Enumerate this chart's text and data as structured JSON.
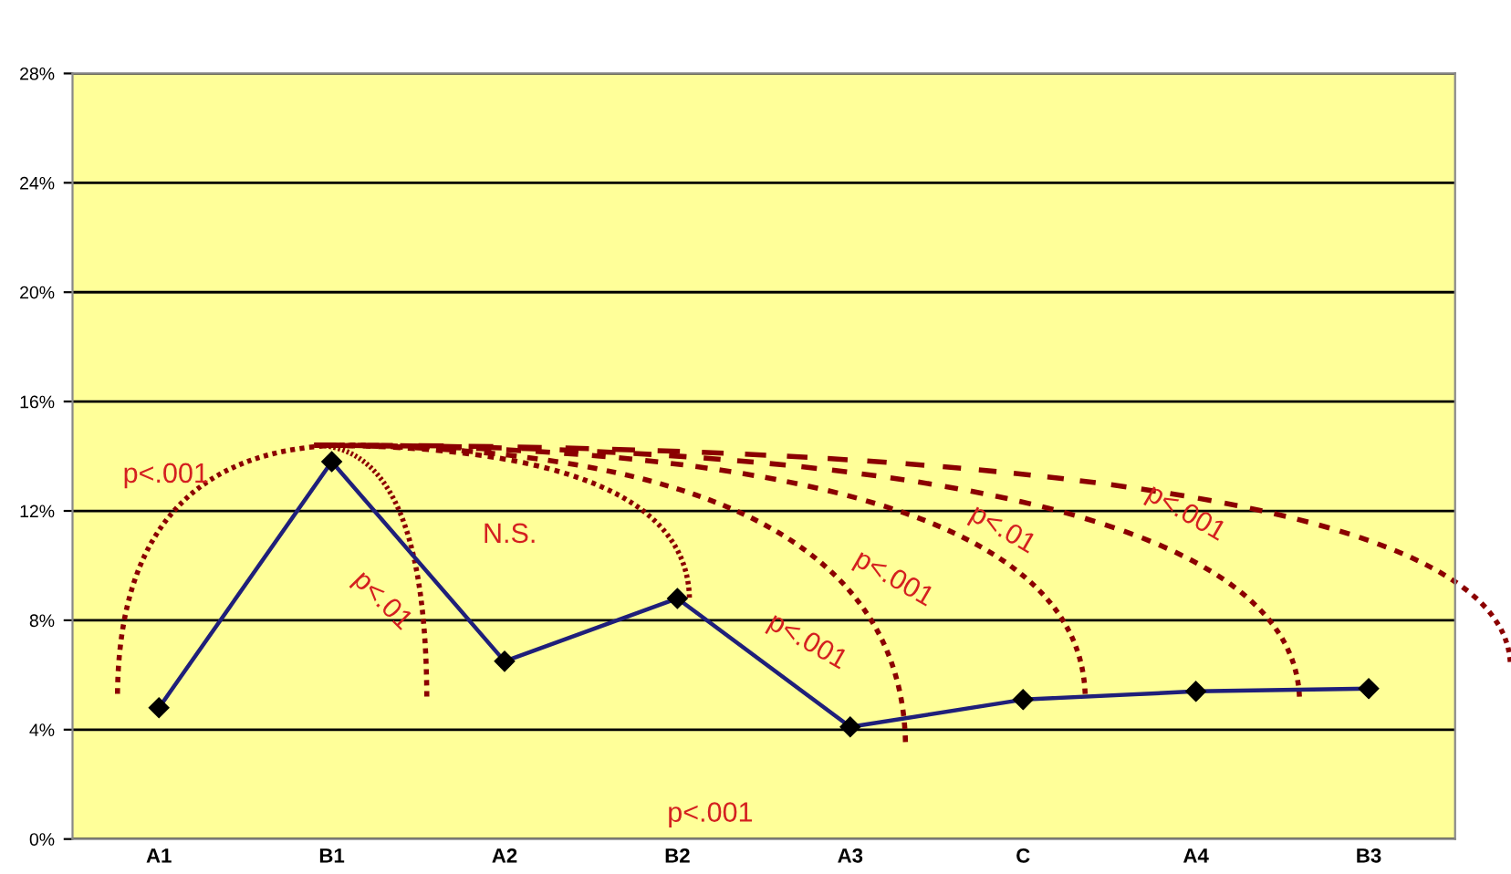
{
  "chart_data": {
    "type": "line",
    "categories": [
      "A1",
      "B1",
      "A2",
      "B2",
      "A3",
      "C",
      "A4",
      "B3"
    ],
    "series": [
      {
        "color": "#1f1f7a",
        "values": [
          4.8,
          13.8,
          6.5,
          8.8,
          4.1,
          5.1,
          5.4,
          5.5
        ]
      }
    ],
    "marker": "diamond",
    "ylim": [
      0,
      28
    ],
    "yticks": [
      {
        "value": 0,
        "label": "0%"
      },
      {
        "value": 4,
        "label": "4%"
      },
      {
        "value": 8,
        "label": "8%"
      },
      {
        "value": 12,
        "label": "12%"
      },
      {
        "value": 16,
        "label": "16%"
      },
      {
        "value": 20,
        "label": "20%"
      },
      {
        "value": 24,
        "label": "24%"
      },
      {
        "value": 28,
        "label": "28%"
      }
    ],
    "grid": "y",
    "annotations": [
      "p<.001",
      "N.S.",
      "p<.01",
      "p<.001",
      "p<.001",
      "p<.01",
      "p<.001",
      "p<.001"
    ]
  }
}
